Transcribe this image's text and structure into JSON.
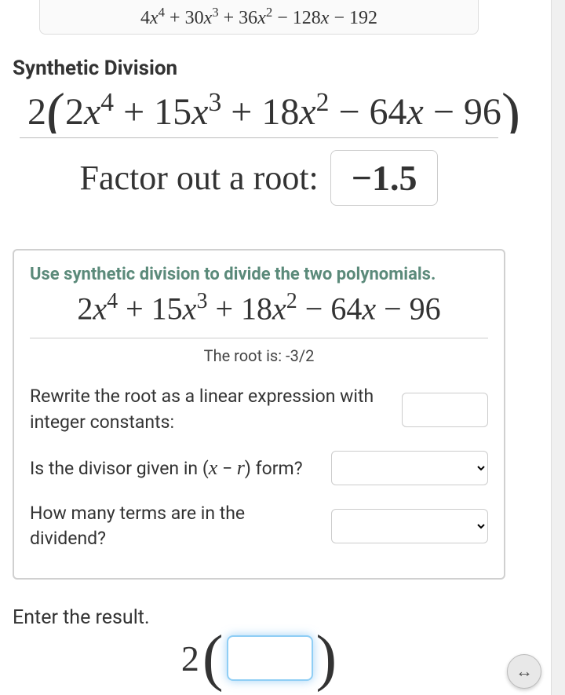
{
  "top_box": {
    "expr": "4x⁴ + 30x³ + 36x² − 128x − 192"
  },
  "section_title": "Synthetic Division",
  "main_expr": {
    "leading": "2",
    "inner": "2x⁴ + 15x³ + 18x² − 64x − 96"
  },
  "factor_label": "Factor out a root:",
  "factor_value": "−1.5",
  "panel": {
    "title": "Use synthetic division to divide the two polynomials.",
    "poly": "2x⁴ + 15x³ + 18x² − 64x − 96",
    "root_text": "The root is: -3/2",
    "q1": "Rewrite the root as a linear expression with integer constants:",
    "q2_pre": "Is the divisor given in (",
    "q2_x": "x",
    "q2_dash": " − ",
    "q2_r": "r",
    "q2_post": ") form?",
    "q3": "How many terms are in the dividend?"
  },
  "enter_result": "Enter the result.",
  "result_leading": "2",
  "colors": {
    "panel_accent": "#5b8a7a",
    "glow": "#8fcef5"
  }
}
